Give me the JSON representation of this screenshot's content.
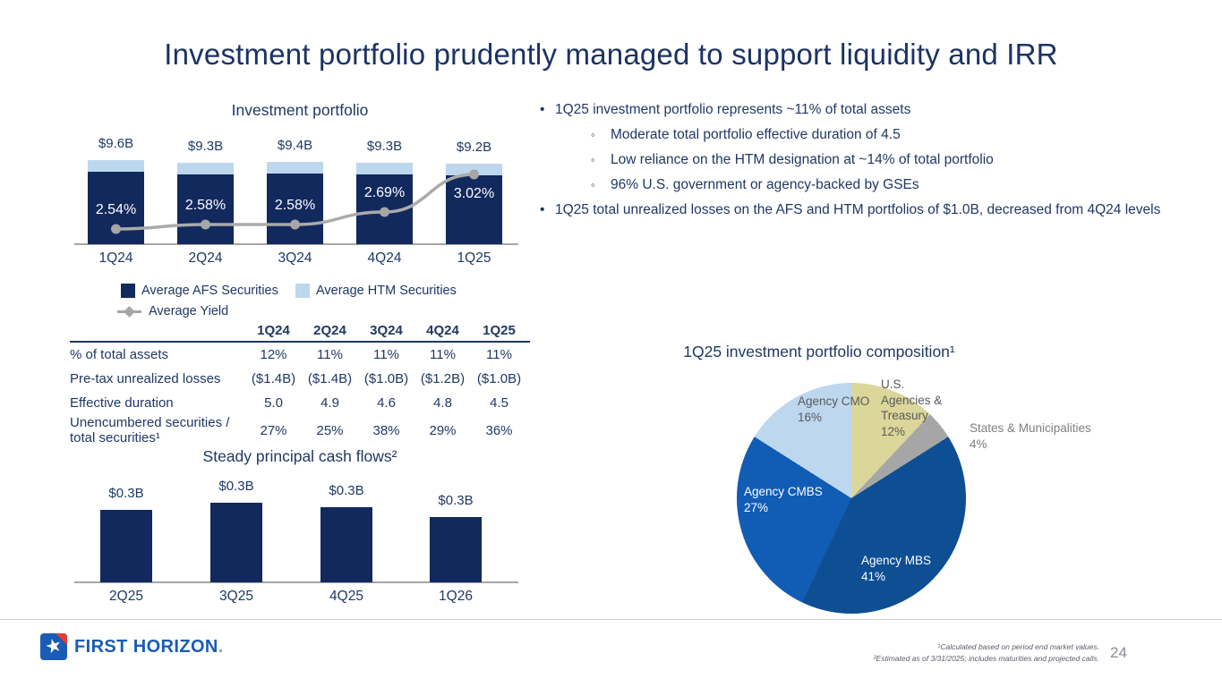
{
  "slide": {
    "title": "Investment portfolio prudently managed to support liquidity and IRR",
    "page_number": "24",
    "footnotes": [
      "¹Calculated based on period end market values.",
      "²Estimated as of 3/31/2025; includes maturities and projected calls."
    ],
    "brand": {
      "name": "FIRST HORIZON",
      "period": "."
    }
  },
  "bullets": [
    {
      "level": 1,
      "text": "1Q25 investment portfolio represents ~11% of total assets"
    },
    {
      "level": 2,
      "text": "Moderate total portfolio effective duration of 4.5"
    },
    {
      "level": 2,
      "text": "Low reliance on the HTM designation at ~14% of total portfolio"
    },
    {
      "level": 2,
      "text": "96% U.S. government or agency-backed by GSEs"
    },
    {
      "level": 1,
      "text": "1Q25 total unrealized losses on the AFS and HTM portfolios of $1.0B, decreased from 4Q24 levels"
    }
  ],
  "colors": {
    "navy_text": "#1F3864",
    "bar_navy": "#12295E",
    "light_blue": "#BDD7EE",
    "line_gray": "#A6A6A6",
    "pie_mbs_blue": "#0E4E93",
    "pie_cmbs_blue": "#115CB5",
    "pie_khaki": "#DBD79B",
    "pie_gray": "#A6A6A6",
    "logo_blue": "#1A5CB4",
    "logo_red": "#E03E2D"
  },
  "chart_data": [
    {
      "id": "investment-portfolio",
      "type": "bar",
      "stacked": true,
      "title": "Investment portfolio",
      "categories": [
        "1Q24",
        "2Q24",
        "3Q24",
        "4Q24",
        "1Q25"
      ],
      "totals": [
        9.6,
        9.3,
        9.4,
        9.3,
        9.2
      ],
      "total_labels": [
        "$9.6B",
        "$9.3B",
        "$9.4B",
        "$9.3B",
        "$9.2B"
      ],
      "series": [
        {
          "name": "Average AFS Securities",
          "type": "bar",
          "color": "#12295E",
          "values": [
            8.3,
            8.0,
            8.1,
            8.0,
            7.9
          ]
        },
        {
          "name": "Average HTM Securities",
          "type": "bar",
          "color": "#BDD7EE",
          "values": [
            1.3,
            1.3,
            1.3,
            1.3,
            1.3
          ]
        },
        {
          "name": "Average Yield",
          "type": "line",
          "color": "#A6A6A6",
          "values": [
            2.54,
            2.58,
            2.58,
            2.69,
            3.02
          ]
        }
      ],
      "yield_labels": [
        "2.54%",
        "2.58%",
        "2.58%",
        "2.69%",
        "3.02%"
      ],
      "units": "$ billions; yield in %",
      "legend_position": "bottom"
    },
    {
      "id": "portfolio-metrics",
      "type": "table",
      "columns": [
        "1Q24",
        "2Q24",
        "3Q24",
        "4Q24",
        "1Q25"
      ],
      "rows": [
        {
          "label": "% of total assets",
          "values": [
            "12%",
            "11%",
            "11%",
            "11%",
            "11%"
          ]
        },
        {
          "label": "Pre-tax unrealized losses",
          "values": [
            "($1.4B)",
            "($1.4B)",
            "($1.0B)",
            "($1.2B)",
            "($1.0B)"
          ]
        },
        {
          "label": "Effective duration",
          "values": [
            "5.0",
            "4.9",
            "4.6",
            "4.8",
            "4.5"
          ]
        },
        {
          "label": "Unencumbered securities /\ntotal securities¹",
          "values": [
            "27%",
            "25%",
            "38%",
            "29%",
            "36%"
          ]
        }
      ]
    },
    {
      "id": "principal-cash-flows",
      "type": "bar",
      "title": "Steady principal cash flows²",
      "categories": [
        "2Q25",
        "3Q25",
        "4Q25",
        "1Q26"
      ],
      "values": [
        0.3,
        0.33,
        0.31,
        0.27
      ],
      "value_labels": [
        "$0.3B",
        "$0.3B",
        "$0.3B",
        "$0.3B"
      ],
      "bar_color": "#12295E",
      "units": "$ billions"
    },
    {
      "id": "portfolio-composition",
      "type": "pie",
      "title": "1Q25 investment portfolio composition¹",
      "start": "12 o'clock, clockwise",
      "slices": [
        {
          "label": "U.S. Agencies & Treasury",
          "pct": 12,
          "pct_label": "12%",
          "color": "#DBD79B"
        },
        {
          "label": "States & Municipalities",
          "pct": 4,
          "pct_label": "4%",
          "color": "#A6A6A6"
        },
        {
          "label": "Agency MBS",
          "pct": 41,
          "pct_label": "41%",
          "color": "#0E4E93"
        },
        {
          "label": "Agency CMBS",
          "pct": 27,
          "pct_label": "27%",
          "color": "#115CB5"
        },
        {
          "label": "Agency CMO",
          "pct": 16,
          "pct_label": "16%",
          "color": "#BDD7EE"
        }
      ]
    }
  ]
}
